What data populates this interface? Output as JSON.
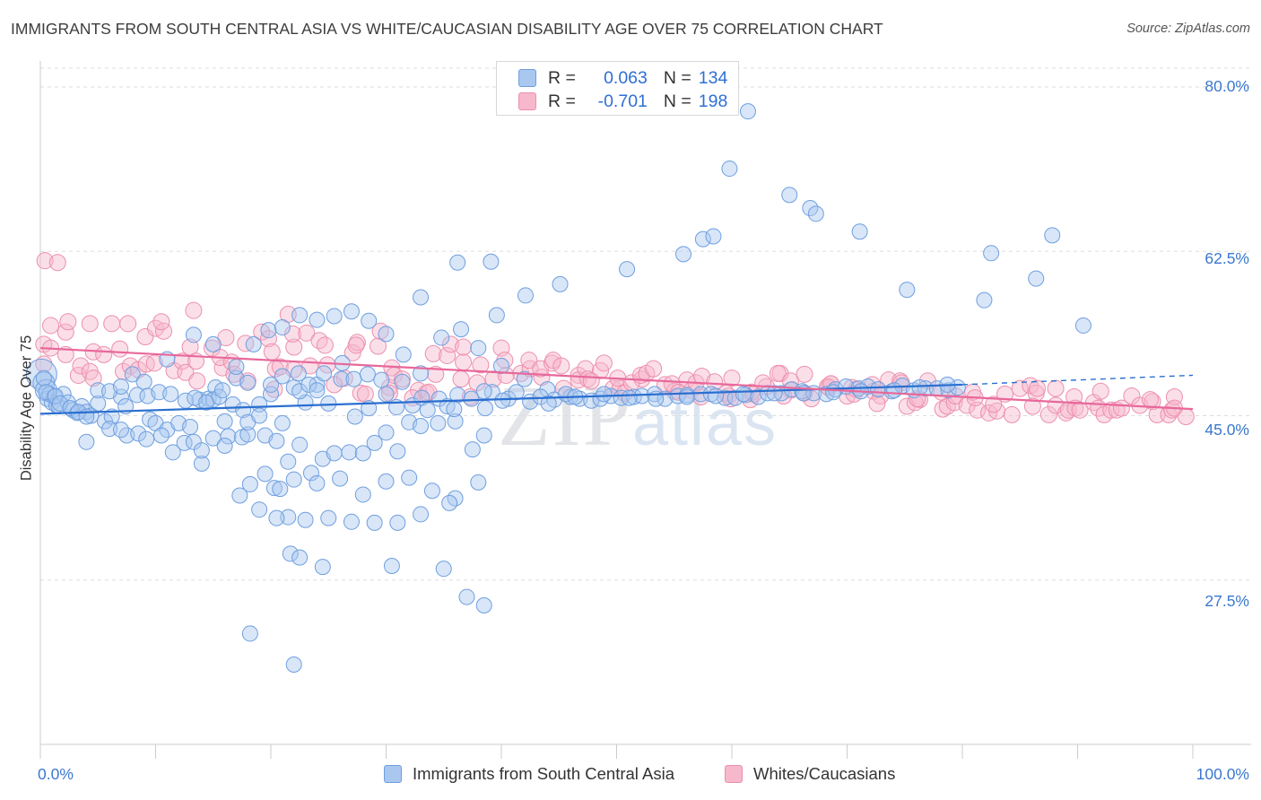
{
  "header": {
    "title": "IMMIGRANTS FROM SOUTH CENTRAL ASIA VS WHITE/CAUCASIAN DISABILITY AGE OVER 75 CORRELATION CHART",
    "source": "Source: ZipAtlas.com"
  },
  "watermark": {
    "zip": "ZIP",
    "atlas": "atlas"
  },
  "legend": {
    "r_label": "R =",
    "n_label": "N =",
    "blue": {
      "r": "0.063",
      "n": "134"
    },
    "pink": {
      "r": "-0.701",
      "n": "198"
    }
  },
  "bottom_legend": {
    "blue_label": "Immigrants from South Central Asia",
    "pink_label": "Whites/Caucasians"
  },
  "colors": {
    "blue_fill": "#a9c7ef",
    "blue_stroke": "#6f9fdf",
    "blue_line": "#2a6fd0",
    "pink_fill": "#f7b8cc",
    "pink_stroke": "#ec8fae",
    "pink_line": "#e8689a",
    "grid": "#dddddd",
    "tick_text": "#3a78cf"
  },
  "chart_data": {
    "type": "scatter",
    "title": "IMMIGRANTS FROM SOUTH CENTRAL ASIA VS WHITE/CAUCASIAN DISABILITY AGE OVER 75 CORRELATION CHART",
    "xlabel": "",
    "ylabel": "Disability Age Over 75",
    "xlim": [
      0,
      100
    ],
    "ylim": [
      10,
      82
    ],
    "x_tick_labels": [
      "0.0%",
      "100.0%"
    ],
    "y_ticks": [
      27.5,
      45.0,
      62.5,
      80.0
    ],
    "y_tick_labels": [
      "27.5%",
      "45.0%",
      "62.5%",
      "80.0%"
    ],
    "grid": true,
    "legend_position": "top-center",
    "series": [
      {
        "name": "Immigrants from South Central Asia",
        "r": 0.063,
        "n": 134,
        "trend": {
          "x": [
            0,
            80
          ],
          "y": [
            45.2,
            48.3
          ],
          "dashed_extension": {
            "x": [
              80,
              100
            ],
            "y": [
              48.3,
              49.3
            ]
          }
        },
        "points": [
          [
            0.1,
            49.4
          ],
          [
            0.3,
            48.5
          ],
          [
            0.5,
            47.7
          ],
          [
            0.6,
            46.8
          ],
          [
            0.8,
            47.3
          ],
          [
            1.0,
            46.4
          ],
          [
            1.2,
            47.0
          ],
          [
            1.4,
            46.1
          ],
          [
            1.6,
            46.0
          ],
          [
            2.0,
            47.3
          ],
          [
            2.4,
            46.4
          ],
          [
            2.8,
            45.6
          ],
          [
            3.2,
            45.3
          ],
          [
            3.6,
            46.0
          ],
          [
            4.0,
            45.4
          ],
          [
            4.4,
            45.0
          ],
          [
            5.0,
            46.3
          ],
          [
            5.6,
            44.4
          ],
          [
            6.2,
            44.9
          ],
          [
            7.0,
            47.0
          ],
          [
            7.4,
            46.0
          ],
          [
            8.0,
            49.4
          ],
          [
            9.0,
            48.6
          ],
          [
            9.5,
            44.6
          ],
          [
            10.0,
            44.2
          ],
          [
            11.0,
            43.5
          ],
          [
            12.0,
            44.2
          ],
          [
            13.0,
            43.8
          ],
          [
            13.8,
            46.7
          ],
          [
            14.6,
            46.8
          ],
          [
            15.2,
            48.0
          ],
          [
            16.0,
            44.4
          ],
          [
            17.0,
            49.0
          ],
          [
            18.0,
            48.5
          ],
          [
            19.0,
            46.2
          ],
          [
            20.0,
            47.3
          ],
          [
            21.0,
            49.2
          ],
          [
            22.0,
            48.0
          ],
          [
            23.0,
            46.4
          ],
          [
            24.0,
            48.3
          ],
          [
            25.0,
            46.3
          ],
          [
            4.0,
            42.2
          ],
          [
            6.0,
            43.6
          ],
          [
            7.5,
            42.9
          ],
          [
            8.5,
            43.1
          ],
          [
            9.2,
            42.5
          ],
          [
            10.5,
            42.9
          ],
          [
            11.5,
            41.1
          ],
          [
            12.5,
            42.1
          ],
          [
            13.3,
            42.2
          ],
          [
            14.0,
            39.9
          ],
          [
            15.0,
            42.6
          ],
          [
            16.3,
            42.8
          ],
          [
            17.5,
            42.7
          ],
          [
            18.0,
            43.0
          ],
          [
            19.5,
            42.9
          ],
          [
            20.5,
            42.3
          ],
          [
            21.5,
            40.1
          ],
          [
            22.5,
            41.9
          ],
          [
            23.5,
            38.9
          ],
          [
            24.5,
            40.4
          ],
          [
            25.5,
            41.0
          ],
          [
            26.8,
            41.1
          ],
          [
            28.0,
            41.0
          ],
          [
            29.0,
            42.1
          ],
          [
            30.0,
            43.2
          ],
          [
            31.0,
            41.2
          ],
          [
            32.0,
            44.3
          ],
          [
            33.0,
            43.9
          ],
          [
            34.5,
            44.2
          ],
          [
            36.0,
            44.4
          ],
          [
            37.5,
            41.4
          ],
          [
            38.5,
            42.9
          ],
          [
            11.0,
            51.0
          ],
          [
            13.3,
            53.6
          ],
          [
            15.0,
            52.6
          ],
          [
            17.0,
            50.2
          ],
          [
            18.5,
            52.6
          ],
          [
            19.8,
            54.1
          ],
          [
            21.0,
            54.4
          ],
          [
            22.5,
            55.7
          ],
          [
            24.0,
            55.2
          ],
          [
            25.5,
            55.6
          ],
          [
            27.0,
            56.1
          ],
          [
            28.5,
            55.1
          ],
          [
            30.0,
            53.7
          ],
          [
            31.5,
            51.5
          ],
          [
            33.0,
            49.5
          ],
          [
            34.8,
            53.3
          ],
          [
            36.5,
            54.2
          ],
          [
            38.0,
            52.2
          ],
          [
            40.0,
            50.3
          ],
          [
            42.0,
            48.9
          ],
          [
            44.0,
            47.8
          ],
          [
            46.0,
            47.0
          ],
          [
            14.0,
            41.3
          ],
          [
            16.0,
            41.8
          ],
          [
            18.2,
            37.7
          ],
          [
            19.5,
            38.8
          ],
          [
            20.3,
            37.3
          ],
          [
            20.8,
            37.2
          ],
          [
            22.0,
            38.2
          ],
          [
            24.0,
            37.8
          ],
          [
            26.0,
            38.3
          ],
          [
            28.0,
            36.6
          ],
          [
            30.0,
            38.0
          ],
          [
            32.0,
            38.4
          ],
          [
            34.0,
            37.0
          ],
          [
            36.0,
            36.2
          ],
          [
            38.0,
            37.9
          ],
          [
            17.3,
            36.5
          ],
          [
            19.0,
            35.0
          ],
          [
            21.5,
            34.2
          ],
          [
            23.0,
            33.9
          ],
          [
            25.0,
            34.1
          ],
          [
            27.0,
            33.7
          ],
          [
            29.0,
            33.6
          ],
          [
            31.0,
            33.6
          ],
          [
            33.0,
            34.5
          ],
          [
            35.5,
            35.7
          ],
          [
            30.5,
            29.0
          ],
          [
            35.0,
            28.7
          ],
          [
            37.0,
            25.7
          ],
          [
            38.5,
            24.8
          ],
          [
            20.5,
            34.1
          ],
          [
            21.7,
            30.3
          ],
          [
            22.5,
            29.9
          ],
          [
            24.5,
            28.9
          ],
          [
            18.2,
            21.8
          ],
          [
            22.0,
            18.5
          ],
          [
            15.0,
            46.7
          ],
          [
            15.5,
            47.0
          ],
          [
            15.8,
            47.7
          ],
          [
            16.7,
            46.2
          ],
          [
            17.6,
            45.6
          ],
          [
            18.0,
            44.3
          ],
          [
            19.0,
            45.0
          ],
          [
            21.0,
            44.2
          ],
          [
            22.5,
            47.6
          ],
          [
            23.3,
            48.3
          ],
          [
            24.6,
            49.5
          ],
          [
            26.1,
            48.9
          ],
          [
            27.2,
            48.9
          ],
          [
            28.4,
            49.4
          ],
          [
            29.6,
            48.8
          ],
          [
            30.0,
            47.3
          ],
          [
            31.4,
            48.6
          ],
          [
            32.3,
            46.1
          ],
          [
            33.1,
            46.9
          ],
          [
            34.6,
            46.8
          ],
          [
            35.3,
            46.0
          ],
          [
            36.2,
            47.2
          ],
          [
            37.4,
            46.8
          ],
          [
            38.6,
            45.8
          ],
          [
            39.2,
            47.5
          ],
          [
            40.6,
            46.8
          ],
          [
            41.3,
            47.5
          ],
          [
            42.5,
            46.5
          ],
          [
            43.4,
            47.0
          ],
          [
            44.6,
            46.7
          ],
          [
            45.6,
            47.3
          ],
          [
            46.8,
            46.8
          ],
          [
            47.8,
            46.6
          ],
          [
            48.6,
            46.8
          ],
          [
            49.5,
            47.1
          ],
          [
            50.4,
            46.9
          ],
          [
            51.5,
            47.0
          ],
          [
            52.2,
            47.1
          ],
          [
            53.3,
            47.3
          ],
          [
            54.2,
            46.8
          ],
          [
            55.3,
            47.1
          ],
          [
            56.1,
            47.2
          ],
          [
            57.3,
            47.3
          ],
          [
            58.2,
            47.3
          ],
          [
            59.4,
            46.9
          ],
          [
            60.3,
            46.9
          ],
          [
            61.2,
            47.2
          ],
          [
            62.3,
            47.0
          ],
          [
            63.1,
            47.4
          ],
          [
            64.3,
            47.4
          ],
          [
            65.2,
            47.8
          ],
          [
            66.1,
            47.6
          ],
          [
            67.1,
            47.4
          ],
          [
            68.2,
            47.3
          ],
          [
            69.0,
            47.8
          ],
          [
            69.9,
            48.1
          ],
          [
            71.0,
            47.9
          ],
          [
            71.8,
            48.1
          ],
          [
            72.7,
            47.8
          ],
          [
            73.9,
            47.6
          ],
          [
            74.8,
            48.2
          ],
          [
            75.8,
            47.7
          ],
          [
            76.8,
            47.9
          ],
          [
            77.8,
            47.9
          ],
          [
            78.8,
            47.7
          ],
          [
            79.6,
            48.0
          ],
          [
            5.0,
            47.7
          ],
          [
            6.0,
            47.6
          ],
          [
            7.0,
            48.1
          ],
          [
            8.4,
            47.2
          ],
          [
            9.3,
            47.1
          ],
          [
            10.3,
            47.5
          ],
          [
            11.3,
            47.3
          ],
          [
            12.6,
            46.6
          ],
          [
            13.4,
            46.9
          ],
          [
            14.4,
            46.4
          ],
          [
            20.0,
            48.3
          ],
          [
            22.4,
            49.5
          ],
          [
            24.0,
            47.7
          ],
          [
            26.2,
            50.6
          ],
          [
            28.5,
            45.8
          ],
          [
            30.9,
            45.9
          ],
          [
            33.6,
            45.6
          ],
          [
            35.9,
            45.7
          ],
          [
            38.5,
            47.6
          ],
          [
            40.1,
            46.6
          ],
          [
            44.1,
            46.3
          ],
          [
            46.4,
            47.0
          ],
          [
            48.9,
            47.3
          ],
          [
            51.1,
            46.9
          ],
          [
            53.4,
            46.8
          ],
          [
            56.1,
            47.0
          ],
          [
            58.6,
            47.1
          ],
          [
            61.0,
            47.3
          ],
          [
            63.7,
            47.4
          ],
          [
            66.2,
            47.4
          ],
          [
            68.8,
            47.5
          ],
          [
            71.2,
            47.6
          ],
          [
            74.1,
            47.7
          ],
          [
            76.3,
            48.0
          ],
          [
            78.7,
            48.3
          ],
          [
            0.3,
            49.0
          ],
          [
            0.5,
            47.5
          ],
          [
            1.3,
            47.1
          ],
          [
            1.7,
            46.3
          ],
          [
            2.6,
            45.8
          ],
          [
            3.3,
            45.4
          ],
          [
            4.0,
            44.9
          ],
          [
            7.0,
            43.5
          ],
          [
            27.3,
            44.9
          ],
          [
            33.0,
            57.6
          ],
          [
            36.2,
            61.3
          ],
          [
            39.1,
            61.4
          ],
          [
            39.6,
            55.7
          ],
          [
            42.1,
            57.8
          ],
          [
            45.1,
            59.0
          ],
          [
            50.9,
            60.6
          ],
          [
            55.8,
            62.2
          ],
          [
            57.5,
            63.8
          ],
          [
            58.4,
            64.1
          ],
          [
            59.8,
            71.3
          ],
          [
            61.4,
            77.4
          ],
          [
            65.0,
            68.5
          ],
          [
            66.8,
            67.1
          ],
          [
            67.3,
            66.5
          ],
          [
            71.1,
            64.6
          ],
          [
            75.2,
            58.4
          ],
          [
            81.9,
            57.3
          ],
          [
            82.5,
            62.3
          ],
          [
            86.4,
            59.6
          ],
          [
            87.8,
            64.2
          ],
          [
            90.5,
            54.6
          ]
        ]
      },
      {
        "name": "Whites/Caucasians",
        "r": -0.701,
        "n": 198,
        "trend": {
          "x": [
            0,
            100
          ],
          "y": [
            52.2,
            45.7
          ]
        },
        "points": []
      }
    ]
  }
}
